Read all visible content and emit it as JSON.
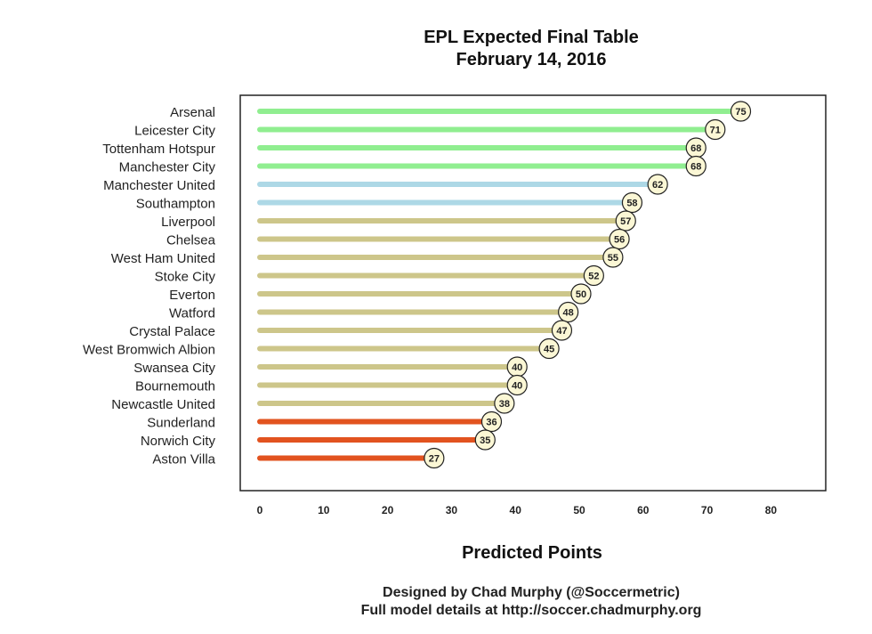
{
  "chart_data": {
    "type": "bar",
    "orientation": "horizontal",
    "title": "EPL Expected Final Table",
    "subtitle": "February 14, 2016",
    "xlabel": "Predicted Points",
    "ylabel": "",
    "xlim": [
      0,
      88
    ],
    "xticks": [
      "0",
      "10",
      "20",
      "30",
      "40",
      "50",
      "60",
      "70",
      "80"
    ],
    "grid": false,
    "legend": "none",
    "categories": [
      "Arsenal",
      "Leicester City",
      "Tottenham Hotspur",
      "Manchester City",
      "Manchester United",
      "Southampton",
      "Liverpool",
      "Chelsea",
      "West Ham United",
      "Stoke City",
      "Everton",
      "Watford",
      "Crystal Palace",
      "West Bromwich Albion",
      "Swansea City",
      "Bournemouth",
      "Newcastle United",
      "Sunderland",
      "Norwich City",
      "Aston Villa"
    ],
    "values": [
      75,
      71,
      68,
      68,
      62,
      58,
      57,
      56,
      55,
      52,
      50,
      48,
      47,
      45,
      40,
      40,
      38,
      36,
      35,
      27
    ],
    "bar_colors": [
      "#90ee90",
      "#90ee90",
      "#90ee90",
      "#90ee90",
      "#add8e6",
      "#add8e6",
      "#cdc68a",
      "#cdc68a",
      "#cdc68a",
      "#cdc68a",
      "#cdc68a",
      "#cdc68a",
      "#cdc68a",
      "#cdc68a",
      "#cdc68a",
      "#cdc68a",
      "#cdc68a",
      "#e2531f",
      "#e2531f",
      "#e2531f"
    ],
    "label_fill": "#fbf7d5"
  },
  "footer": {
    "line1": "Designed by Chad Murphy (@Soccermetric)",
    "line2": "Full model details at http://soccer.chadmurphy.org"
  }
}
